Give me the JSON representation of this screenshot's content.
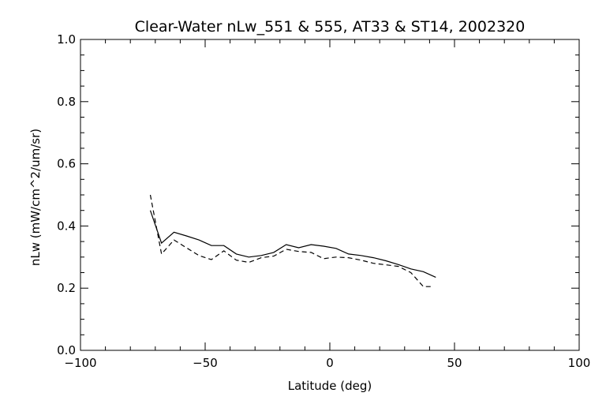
{
  "chart_data": {
    "type": "line",
    "title": "Clear-Water nLw_551 & 555, AT33 & ST14, 2002320",
    "xlabel": "Latitude (deg)",
    "ylabel": "nLw (mW/cm^2/um/sr)",
    "xlim": [
      -100,
      100
    ],
    "ylim": [
      0.0,
      1.0
    ],
    "x_ticks": [
      -100,
      -50,
      0,
      50,
      100
    ],
    "x_tick_labels": [
      "−100",
      "−50",
      "0",
      "50",
      "100"
    ],
    "y_ticks": [
      0.0,
      0.2,
      0.4,
      0.6,
      0.8,
      1.0
    ],
    "y_tick_labels": [
      "0.0",
      "0.2",
      "0.4",
      "0.6",
      "0.8",
      "1.0"
    ],
    "grid": false,
    "series": [
      {
        "style": "solid",
        "color": "#000000",
        "x": [
          -72,
          -67.5,
          -62.5,
          -57.5,
          -52.5,
          -47.5,
          -42.5,
          -37.5,
          -32.5,
          -27.5,
          -22.5,
          -17.5,
          -12.5,
          -7.5,
          -2.5,
          2.5,
          7.5,
          12.5,
          17.5,
          22.5,
          27.5,
          32.5,
          37.5,
          42.5
        ],
        "y": [
          0.45,
          0.345,
          0.38,
          0.368,
          0.355,
          0.337,
          0.337,
          0.31,
          0.3,
          0.305,
          0.315,
          0.34,
          0.33,
          0.34,
          0.335,
          0.328,
          0.31,
          0.305,
          0.298,
          0.288,
          0.276,
          0.262,
          0.253,
          0.235
        ]
      },
      {
        "style": "dashed",
        "color": "#000000",
        "x": [
          -72,
          -67.5,
          -62.5,
          -57.5,
          -52.5,
          -47.5,
          -42.5,
          -37.5,
          -32.5,
          -27.5,
          -22.5,
          -17.5,
          -12.5,
          -7.5,
          -2.5,
          2.5,
          7.5,
          12.5,
          17.5,
          22.5,
          27.5,
          32.5,
          37.5,
          40.5
        ],
        "y": [
          0.5,
          0.31,
          0.355,
          0.33,
          0.305,
          0.292,
          0.32,
          0.29,
          0.283,
          0.298,
          0.303,
          0.325,
          0.318,
          0.315,
          0.295,
          0.3,
          0.298,
          0.29,
          0.28,
          0.275,
          0.27,
          0.25,
          0.205,
          0.205
        ]
      }
    ]
  }
}
